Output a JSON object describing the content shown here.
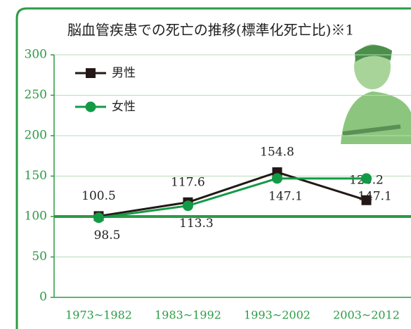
{
  "chart_data": {
    "type": "line",
    "title": "脳血管疾患での死亡の推移(標準化死亡比)※1",
    "categories": [
      "1973~1982",
      "1983~1992",
      "1993~2002",
      "2003~2012"
    ],
    "series": [
      {
        "name": "男性",
        "color": "#231815",
        "values": [
          100.5,
          117.6,
          154.8,
          120.2
        ]
      },
      {
        "name": "女性",
        "color": "#139a45",
        "values": [
          98.5,
          113.3,
          147.1,
          147.1
        ]
      }
    ],
    "ylim": [
      0,
      300
    ],
    "yticks": [
      0,
      50,
      100,
      150,
      200,
      250,
      300
    ],
    "reference_line": 100,
    "grid": true,
    "legend": "top-left"
  }
}
